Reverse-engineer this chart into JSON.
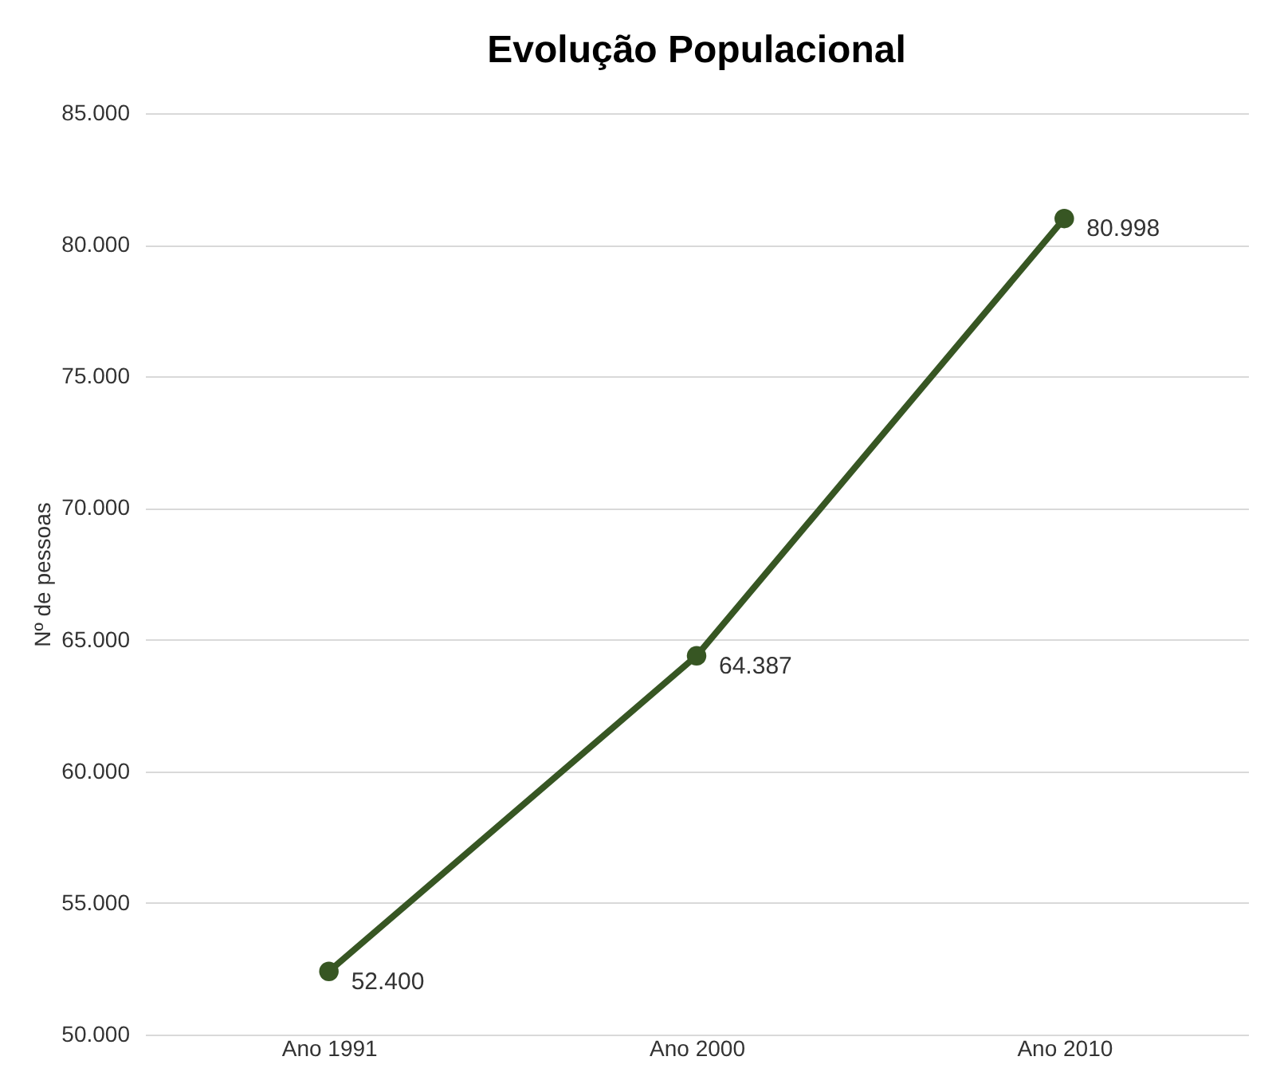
{
  "chart_data": {
    "type": "line",
    "title": "Evolução Populacional",
    "ylabel": "Nº de pessoas",
    "categories": [
      "Ano 1991",
      "Ano 2000",
      "Ano 2010"
    ],
    "series": [
      {
        "color": "#375623",
        "values": [
          52400,
          64387,
          80998
        ],
        "value_labels": [
          "52.400",
          "64.387",
          "80.998"
        ]
      }
    ],
    "ylim": [
      50000,
      85000
    ],
    "yticks": [
      {
        "value": 50000,
        "label": "50.000"
      },
      {
        "value": 55000,
        "label": "55.000"
      },
      {
        "value": 60000,
        "label": "60.000"
      },
      {
        "value": 65000,
        "label": "65.000"
      },
      {
        "value": 70000,
        "label": "70.000"
      },
      {
        "value": 75000,
        "label": "75.000"
      },
      {
        "value": 80000,
        "label": "80.000"
      },
      {
        "value": 85000,
        "label": "85.000"
      }
    ],
    "grid": "y",
    "marker": "circle",
    "line_style": "solid"
  }
}
